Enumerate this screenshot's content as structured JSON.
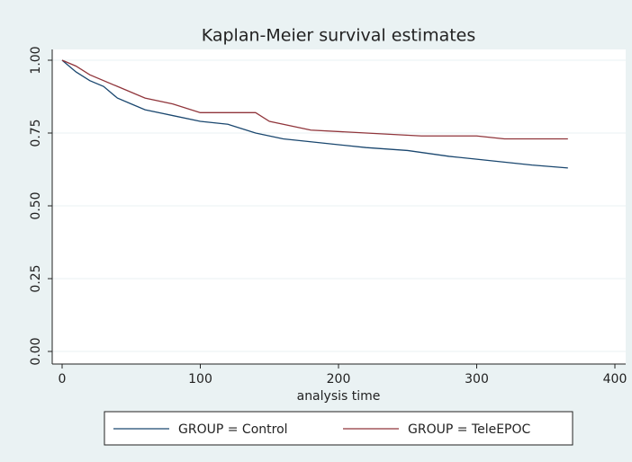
{
  "chart_data": {
    "type": "line",
    "title": "Kaplan-Meier survival estimates",
    "x_label": "analysis time",
    "xlim": [
      0,
      400
    ],
    "xticks": [
      0,
      100,
      200,
      300,
      400
    ],
    "ylim": [
      0,
      1
    ],
    "yticks": [
      {
        "value": 0,
        "label": "0.00"
      },
      0.25,
      {
        "value": 0.5,
        "label": "0.50"
      },
      0.75,
      {
        "value": 1,
        "label": "1.00"
      }
    ],
    "grid": true,
    "series": [
      {
        "name": "GROUP = Control",
        "color": "#1a476f",
        "x": [
          0,
          5,
          10,
          20,
          30,
          40,
          50,
          60,
          80,
          100,
          120,
          140,
          160,
          180,
          200,
          220,
          250,
          280,
          300,
          320,
          340,
          366
        ],
        "values": [
          1.0,
          0.98,
          0.96,
          0.93,
          0.91,
          0.87,
          0.85,
          0.83,
          0.81,
          0.79,
          0.78,
          0.75,
          0.73,
          0.72,
          0.71,
          0.7,
          0.69,
          0.67,
          0.66,
          0.65,
          0.64,
          0.63
        ]
      },
      {
        "name": "GROUP = TeleEPOC",
        "color": "#90353b",
        "x": [
          0,
          10,
          20,
          40,
          60,
          80,
          100,
          140,
          150,
          180,
          220,
          260,
          300,
          320,
          366
        ],
        "values": [
          1.0,
          0.98,
          0.95,
          0.91,
          0.87,
          0.85,
          0.82,
          0.82,
          0.79,
          0.76,
          0.75,
          0.74,
          0.74,
          0.73,
          0.73
        ]
      }
    ]
  }
}
